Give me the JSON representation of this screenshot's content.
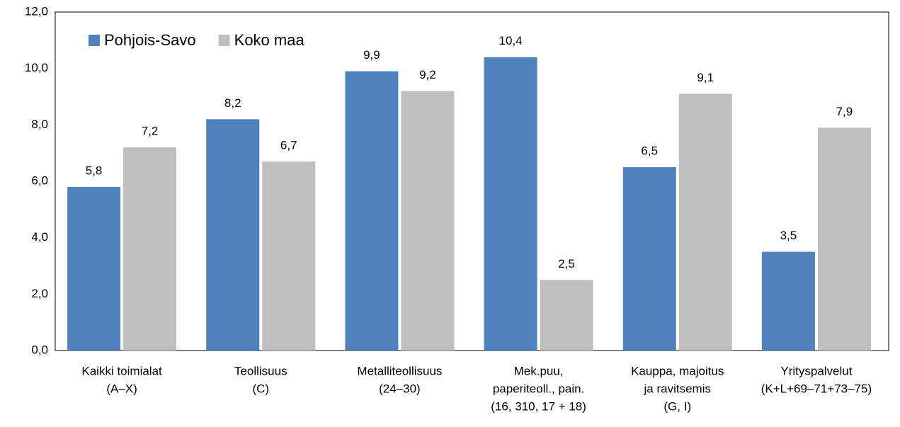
{
  "chart_data": {
    "type": "bar",
    "categories": [
      [
        "Kaikki toimialat",
        "(A–X)"
      ],
      [
        "Teollisuus",
        "(C)"
      ],
      [
        "Metalliteollisuus",
        "(24–30)"
      ],
      [
        "Mek.puu,",
        "paperiteoll., pain.",
        "(16, 310, 17 + 18)"
      ],
      [
        "Kauppa, majoitus",
        "ja ravitsemis",
        "(G, I)"
      ],
      [
        "Yrityspalvelut",
        "(K+L+69–71+73–75)"
      ]
    ],
    "series": [
      {
        "name": "Pohjois-Savo",
        "color": "#4f81bd",
        "values": [
          5.8,
          8.2,
          9.9,
          10.4,
          6.5,
          3.5
        ],
        "value_labels": [
          "5,8",
          "8,2",
          "9,9",
          "10,4",
          "6,5",
          "3,5"
        ]
      },
      {
        "name": "Koko maa",
        "color": "#bfbfbf",
        "values": [
          7.2,
          6.7,
          9.2,
          2.5,
          9.1,
          7.9
        ],
        "value_labels": [
          "7,2",
          "6,7",
          "9,2",
          "2,5",
          "9,1",
          "7,9"
        ]
      }
    ],
    "ylim": [
      0,
      12
    ],
    "yticks": [
      {
        "value": 0,
        "label": "0,0"
      },
      {
        "value": 2,
        "label": "2,0"
      },
      {
        "value": 4,
        "label": "4,0"
      },
      {
        "value": 6,
        "label": "6,0"
      },
      {
        "value": 8,
        "label": "8,0"
      },
      {
        "value": 10,
        "label": "10,0"
      },
      {
        "value": 12,
        "label": "12,0"
      }
    ],
    "grid": false,
    "legend": "top-left"
  }
}
